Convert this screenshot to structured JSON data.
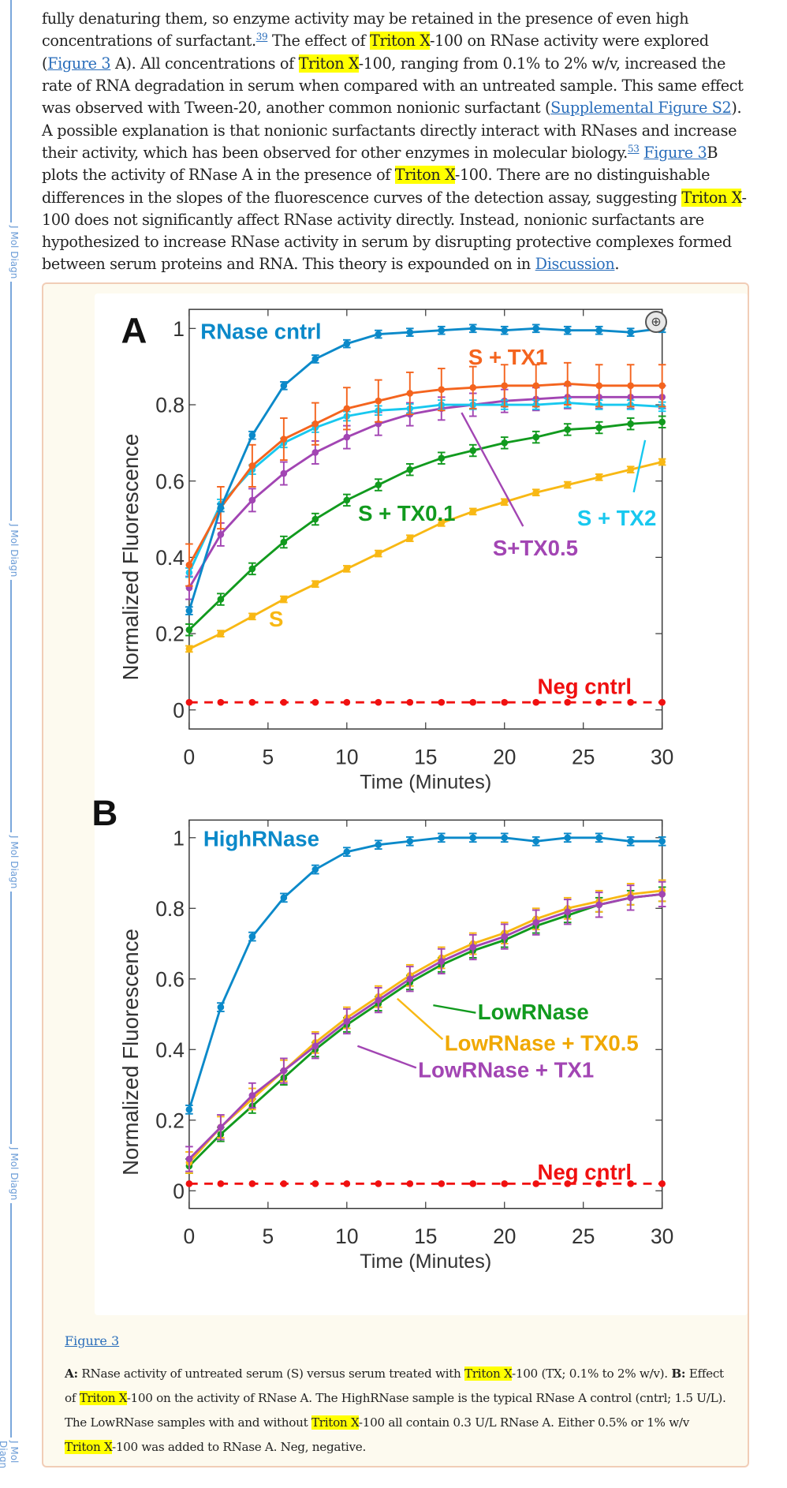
{
  "rail_label": "J Mol Diagn",
  "paragraph": [
    {
      "t": "text",
      "v": "fully denaturing them, so enzyme activity may be retained in the presence of even high concentrations of surfactant."
    },
    {
      "t": "sup",
      "v": "39"
    },
    {
      "t": "text",
      "v": " The effect of "
    },
    {
      "t": "hl",
      "v": "Triton X"
    },
    {
      "t": "text",
      "v": "-100 on RNase activity were explored ("
    },
    {
      "t": "link",
      "v": "Figure 3"
    },
    {
      "t": "text",
      "v": " A). All concentrations of "
    },
    {
      "t": "hl",
      "v": "Triton X"
    },
    {
      "t": "text",
      "v": "-100, ranging from 0.1% to 2% w/v, increased the rate of RNA degradation in serum when compared with an untreated sample. This same effect was observed with Tween-20, another common nonionic surfactant ("
    },
    {
      "t": "link",
      "v": "Supplemental Figure S2"
    },
    {
      "t": "text",
      "v": "). A possible explanation is that nonionic surfactants directly interact with RNases and increase their activity, which has been observed for other enzymes in molecular biology."
    },
    {
      "t": "sup",
      "v": "53"
    },
    {
      "t": "text",
      "v": " "
    },
    {
      "t": "link",
      "v": "Figure 3"
    },
    {
      "t": "text",
      "v": "B plots the activity of RNase A in the presence of "
    },
    {
      "t": "hl",
      "v": "Triton X"
    },
    {
      "t": "text",
      "v": "-100. There are no distinguishable differences in the slopes of the fluorescence curves of the detection assay, suggesting "
    },
    {
      "t": "hl",
      "v": "Triton X"
    },
    {
      "t": "text",
      "v": "-100 does not significantly affect RNase activity directly. Instead, nonionic surfactants are hypothesized to increase RNase activity in serum by disrupting protective complexes formed between serum proteins and RNA. This theory is expounded on in "
    },
    {
      "t": "link",
      "v": "Discussion"
    },
    {
      "t": "text",
      "v": "."
    }
  ],
  "figure": {
    "link_label": "Figure 3",
    "zoom_icon": "zoom-in-icon",
    "caption": [
      {
        "t": "bold",
        "v": "A:"
      },
      {
        "t": "text",
        "v": " RNase activity of untreated serum (S) versus serum treated with "
      },
      {
        "t": "hl",
        "v": "Triton X"
      },
      {
        "t": "text",
        "v": "-100 (TX; 0.1% to 2% w/v). "
      },
      {
        "t": "bold",
        "v": "B:"
      },
      {
        "t": "text",
        "v": " Effect of "
      },
      {
        "t": "hl",
        "v": "Triton X"
      },
      {
        "t": "text",
        "v": "-100 on the activity of RNase A. The HighRNase sample is the typical RNase A control (cntrl; 1.5 U/L). The LowRNase samples with and without "
      },
      {
        "t": "hl",
        "v": "Triton X"
      },
      {
        "t": "text",
        "v": "-100 all contain 0.3 U/L RNase A. Either 0.5% or 1% w/v "
      },
      {
        "t": "hl",
        "v": "Triton X"
      },
      {
        "t": "text",
        "v": "-100 was added to RNase A. Neg, negative."
      }
    ]
  },
  "chart_data": [
    {
      "type": "line",
      "panel": "A",
      "xlabel": "Time (Minutes)",
      "ylabel": "Normalized Fluorescence",
      "xlim": [
        0,
        30
      ],
      "ylim": [
        -0.05,
        1.05
      ],
      "xticks": [
        "0",
        "5",
        "10",
        "15",
        "20",
        "25",
        "30"
      ],
      "yticks": [
        "0",
        "0.2",
        "0.4",
        "0.6",
        "0.8",
        "1"
      ],
      "x": [
        0,
        2,
        4,
        6,
        8,
        10,
        12,
        14,
        16,
        18,
        20,
        22,
        24,
        26,
        28,
        30
      ],
      "series": [
        {
          "name": "S",
          "color": "#f8b814",
          "values": [
            0.16,
            0.2,
            0.245,
            0.29,
            0.33,
            0.37,
            0.41,
            0.45,
            0.49,
            0.52,
            0.545,
            0.57,
            0.59,
            0.61,
            0.63,
            0.65
          ],
          "err": 0.008
        },
        {
          "name": "S + TX0.1",
          "color": "#119a1e",
          "values": [
            0.21,
            0.29,
            0.37,
            0.44,
            0.5,
            0.55,
            0.59,
            0.63,
            0.66,
            0.68,
            0.7,
            0.715,
            0.735,
            0.74,
            0.75,
            0.755
          ],
          "err": 0.015
        },
        {
          "name": "S+TX0.5",
          "color": "#a245b3",
          "values": [
            0.32,
            0.46,
            0.55,
            0.62,
            0.675,
            0.715,
            0.75,
            0.775,
            0.79,
            0.8,
            0.81,
            0.815,
            0.82,
            0.82,
            0.82,
            0.82
          ],
          "err": 0.03
        },
        {
          "name": "S + TX2",
          "color": "#18c8ef",
          "values": [
            0.36,
            0.54,
            0.63,
            0.7,
            0.74,
            0.77,
            0.785,
            0.79,
            0.8,
            0.8,
            0.8,
            0.8,
            0.805,
            0.8,
            0.8,
            0.795
          ],
          "err": 0.012
        },
        {
          "name": "S + TX1",
          "color": "#f4641e",
          "values": [
            0.38,
            0.53,
            0.64,
            0.71,
            0.75,
            0.79,
            0.81,
            0.83,
            0.84,
            0.845,
            0.85,
            0.85,
            0.855,
            0.85,
            0.85,
            0.85
          ],
          "err": 0.055
        },
        {
          "name": "RNase cntrl",
          "color": "#0b89c9",
          "values": [
            0.26,
            0.53,
            0.72,
            0.85,
            0.92,
            0.96,
            0.985,
            0.99,
            0.995,
            1.0,
            0.995,
            1.0,
            0.995,
            0.995,
            0.99,
            1.0
          ],
          "err": 0.01
        },
        {
          "name": "Neg cntrl",
          "color": "#f01010",
          "dashed": true,
          "values": [
            0.02,
            0.02,
            0.02,
            0.02,
            0.02,
            0.02,
            0.02,
            0.02,
            0.02,
            0.02,
            0.02,
            0.02,
            0.02,
            0.02,
            0.02,
            0.02
          ],
          "err": 0.004
        }
      ]
    },
    {
      "type": "line",
      "panel": "B",
      "xlabel": "Time (Minutes)",
      "ylabel": "Normalized Fluorescence",
      "xlim": [
        0,
        30
      ],
      "ylim": [
        -0.05,
        1.05
      ],
      "xticks": [
        "0",
        "5",
        "10",
        "15",
        "20",
        "25",
        "30"
      ],
      "yticks": [
        "0",
        "0.2",
        "0.4",
        "0.6",
        "0.8",
        "1"
      ],
      "x": [
        0,
        2,
        4,
        6,
        8,
        10,
        12,
        14,
        16,
        18,
        20,
        22,
        24,
        26,
        28,
        30
      ],
      "series": [
        {
          "name": "LowRNase",
          "color": "#119a1e",
          "values": [
            0.07,
            0.16,
            0.24,
            0.32,
            0.4,
            0.47,
            0.53,
            0.59,
            0.64,
            0.68,
            0.71,
            0.75,
            0.78,
            0.81,
            0.83,
            0.84
          ],
          "err": 0.02
        },
        {
          "name": "LowRNase + TX0.5",
          "color": "#f8b814",
          "values": [
            0.08,
            0.18,
            0.26,
            0.34,
            0.42,
            0.49,
            0.55,
            0.61,
            0.66,
            0.7,
            0.73,
            0.77,
            0.8,
            0.82,
            0.84,
            0.85
          ],
          "err": 0.03
        },
        {
          "name": "LowRNase + TX1",
          "color": "#a245b3",
          "values": [
            0.09,
            0.18,
            0.27,
            0.34,
            0.41,
            0.48,
            0.54,
            0.6,
            0.65,
            0.69,
            0.72,
            0.76,
            0.79,
            0.81,
            0.83,
            0.84
          ],
          "err": 0.035
        },
        {
          "name": "HighRNase",
          "color": "#0b89c9",
          "values": [
            0.23,
            0.52,
            0.72,
            0.83,
            0.91,
            0.96,
            0.98,
            0.99,
            1.0,
            1.0,
            1.0,
            0.99,
            1.0,
            1.0,
            0.99,
            0.99
          ],
          "err": 0.012
        },
        {
          "name": "Neg cntrl",
          "color": "#f01010",
          "dashed": true,
          "values": [
            0.02,
            0.02,
            0.02,
            0.02,
            0.02,
            0.02,
            0.02,
            0.02,
            0.02,
            0.02,
            0.02,
            0.02,
            0.02,
            0.02,
            0.02,
            0.02
          ],
          "err": 0.004
        }
      ]
    }
  ]
}
